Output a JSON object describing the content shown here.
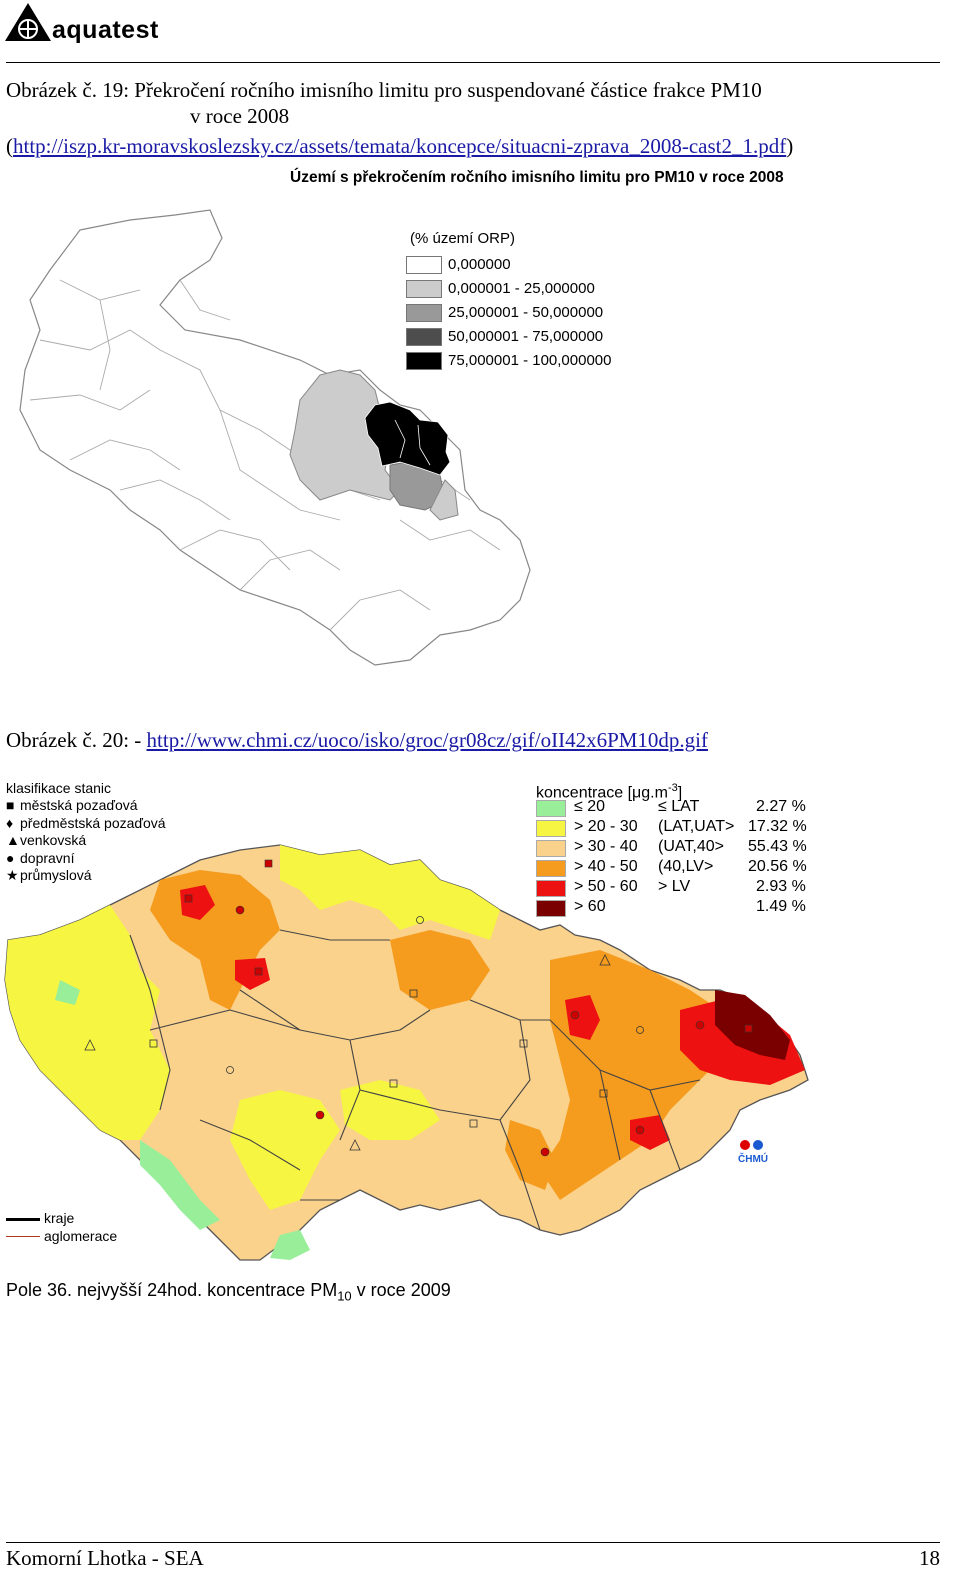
{
  "header": {
    "logo_text": "aquatest"
  },
  "figure19": {
    "caption_line1": "Obrázek č. 19:  Překročení ročního imisního limitu pro suspendované částice frakce PM10",
    "caption_line2": "v roce 2008",
    "caption_link_prefix": "(",
    "caption_link": "http://iszp.kr-moravskoslezsky.cz/assets/temata/koncepce/situacni-zprava_2008-cast2_1.pdf",
    "caption_link_suffix": ")",
    "map_title": "Území s překročením ročního imisního limitu pro PM10 v roce 2008",
    "legend_title": "(% území ORP)",
    "legend": [
      {
        "label": "0,000000",
        "color": "#ffffff"
      },
      {
        "label": "0,000001 - 25,000000",
        "color": "#cccccc"
      },
      {
        "label": "25,000001 - 50,000000",
        "color": "#999999"
      },
      {
        "label": "50,000001 - 75,000000",
        "color": "#4d4d4d"
      },
      {
        "label": "75,000001 - 100,000000",
        "color": "#000000"
      }
    ]
  },
  "figure20": {
    "caption_prefix": "Obrázek č. 20: - ",
    "caption_link": "http://www.chmi.cz/uoco/isko/groc/gr08cz/gif/oII42x6PM10dp.gif",
    "station_legend_title": "klasifikace stanic",
    "stations": [
      {
        "symbol": "■",
        "label": "městská pozaďová"
      },
      {
        "symbol": "♦",
        "label": "předměstská pozaďová"
      },
      {
        "symbol": "▲",
        "label": "venkovská"
      },
      {
        "symbol": "●",
        "label": "dopravní"
      },
      {
        "symbol": "★",
        "label": "průmyslová"
      }
    ],
    "conc_title": "koncentrace [μg.m",
    "conc_title_sup": "-3",
    "conc_title_end": "]",
    "concentration": [
      {
        "range": "≤ 20",
        "class": "≤  LAT",
        "pct": "2.27 %",
        "color": "#99ee99"
      },
      {
        "range": "> 20 - 30",
        "class": "(LAT,UAT>",
        "pct": "17.32 %",
        "color": "#f5f542"
      },
      {
        "range": "> 30 - 40",
        "class": "(UAT,40>",
        "pct": "55.43 %",
        "color": "#fad28c"
      },
      {
        "range": "> 40 - 50",
        "class": "(40,LV>",
        "pct": "20.56 %",
        "color": "#f59b1e"
      },
      {
        "range": "> 50 - 60",
        "class": "> LV",
        "pct": "2.93 %",
        "color": "#ee1111"
      },
      {
        "range": "> 60",
        "class": "",
        "pct": "1.49 %",
        "color": "#7a0000"
      }
    ],
    "lines_legend": [
      {
        "label": "kraje",
        "color": "#000000"
      },
      {
        "label": "aglomerace",
        "color": "#b03a1a"
      }
    ],
    "chmu_label": "ČHMÚ",
    "bottom_caption": "Pole 36. nejvyšší 24hod. koncentrace PM",
    "bottom_caption_sub": "10",
    "bottom_caption_end": " v roce 2009"
  },
  "footer": {
    "left": "Komorní Lhotka - SEA",
    "page": "18"
  }
}
